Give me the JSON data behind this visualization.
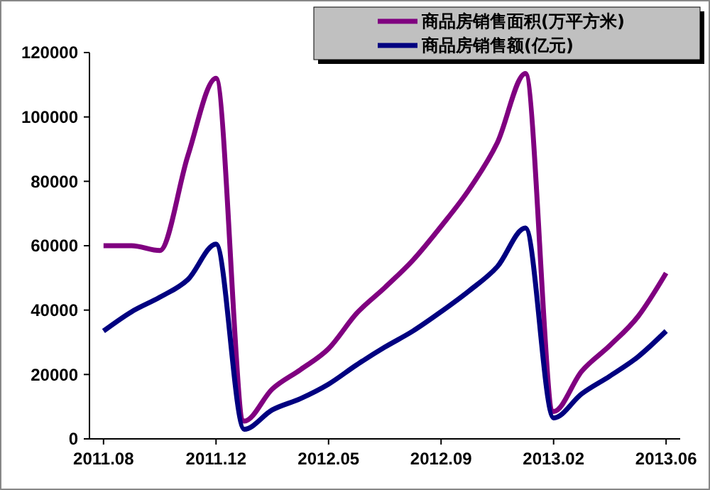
{
  "chart_data": {
    "type": "line",
    "categories": [
      "2011.08",
      null,
      null,
      null,
      "2011.12",
      null,
      null,
      null,
      "2012.05",
      null,
      null,
      null,
      "2012.09",
      null,
      null,
      null,
      "2013.02",
      null,
      null,
      null,
      "2013.06"
    ],
    "series": [
      {
        "name": "商品房销售面积(万平方米)",
        "color": "#800080",
        "values": [
          60000,
          60000,
          58500,
          88000,
          112000,
          5500,
          15500,
          21500,
          28000,
          39000,
          47000,
          55500,
          66000,
          77500,
          92000,
          113500,
          8500,
          21000,
          29000,
          38000,
          51500
        ]
      },
      {
        "name": "商品房销售额(亿元)",
        "color": "#000080",
        "values": [
          33500,
          39500,
          44000,
          49500,
          60500,
          3000,
          9000,
          12500,
          17000,
          23000,
          28500,
          33500,
          39500,
          46000,
          53500,
          65500,
          6500,
          14000,
          19500,
          25500,
          33500
        ]
      }
    ],
    "ylim": [
      0,
      120000
    ],
    "yticks": [
      0,
      20000,
      40000,
      60000,
      80000,
      100000,
      120000
    ],
    "grid": false,
    "legend": "top right",
    "marker": "none",
    "line_style": "solid"
  }
}
